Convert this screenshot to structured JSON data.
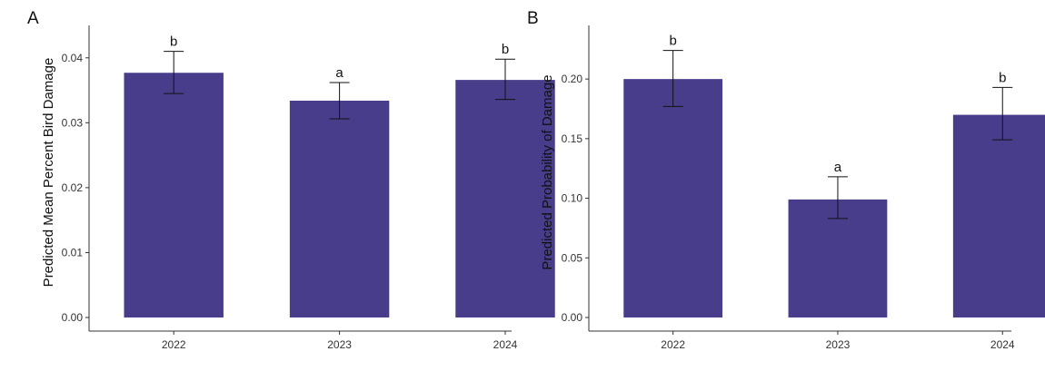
{
  "chart_data": [
    {
      "type": "bar",
      "panel_label": "A",
      "categories": [
        "2022",
        "2023",
        "2024"
      ],
      "values": [
        0.0377,
        0.0334,
        0.0366
      ],
      "error_lower": [
        0.0345,
        0.0306,
        0.0336
      ],
      "error_upper": [
        0.041,
        0.0362,
        0.0398
      ],
      "significance": [
        "b",
        "a",
        "b"
      ],
      "ylabel": "Predicted Mean Percent Bird Damage",
      "xlabel": "",
      "ylim": [
        0,
        0.045
      ],
      "yticks": [
        0,
        0.01,
        0.02,
        0.03,
        0.04
      ],
      "ytick_labels": [
        "0.00",
        "0.01",
        "0.02",
        "0.03",
        "0.04"
      ],
      "bar_color": "#483D8B",
      "grid": false
    },
    {
      "type": "bar",
      "panel_label": "B",
      "categories": [
        "2022",
        "2023",
        "2024"
      ],
      "values": [
        0.2,
        0.099,
        0.17
      ],
      "error_lower": [
        0.177,
        0.083,
        0.149
      ],
      "error_upper": [
        0.224,
        0.118,
        0.193
      ],
      "significance": [
        "b",
        "a",
        "b"
      ],
      "ylabel": "Predicted Probability of Damage",
      "xlabel": "",
      "ylim": [
        0,
        0.245
      ],
      "yticks": [
        0,
        0.05,
        0.1,
        0.15,
        0.2
      ],
      "ytick_labels": [
        "0.00",
        "0.05",
        "0.10",
        "0.15",
        "0.20"
      ],
      "bar_color": "#483D8B",
      "grid": false
    }
  ]
}
